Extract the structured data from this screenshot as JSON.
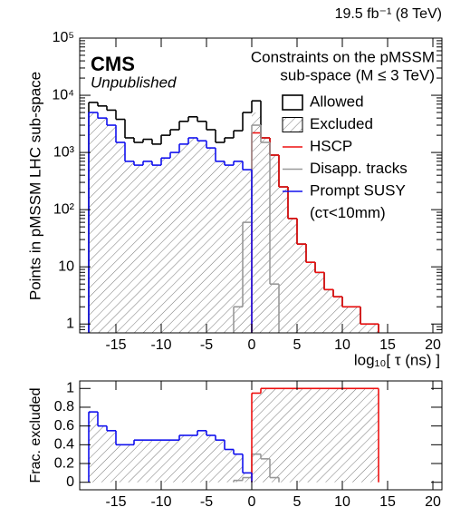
{
  "chart_data": [
    {
      "type": "histogram",
      "title": [
        "Constraints on the pMSSM",
        "sub-space (M ≤ 3 TeV)"
      ],
      "annotations": [
        "19.5 fb⁻¹ (8 TeV)",
        "CMS",
        "Unpublished"
      ],
      "xlabel": "log₁₀[ τ (ns) ]",
      "ylabel": "Points in pMSSM LHC sub-space",
      "log_y": true,
      "legend": "upper right",
      "legend_note": "(cτ<10mm)",
      "bins": [
        -18,
        -17,
        -16,
        -15,
        -14,
        -13,
        -12,
        -11,
        -10,
        -9,
        -8,
        -7,
        -6,
        -5,
        -4,
        -3,
        -2,
        -1,
        0,
        1,
        2,
        3,
        4,
        5,
        6,
        7,
        8,
        9,
        10,
        11,
        12,
        13,
        14
      ],
      "xlim": [
        -19,
        21
      ],
      "xticks": [
        -15,
        -10,
        -5,
        0,
        5,
        10,
        15,
        20
      ],
      "ylim": [
        0.7,
        100000
      ],
      "yticks": [
        1,
        10,
        {
          "value": 100,
          "label": "10²"
        },
        {
          "value": 1000,
          "label": "10³"
        },
        {
          "value": 10000,
          "label": "10⁴"
        },
        {
          "value": 100000,
          "label": "10⁵"
        }
      ],
      "series": [
        {
          "name": "Excluded",
          "color": "#808080",
          "fill": "hatch",
          "values": [
            5000,
            4000,
            3000,
            1500,
            700,
            600,
            700,
            600,
            800,
            1000,
            1400,
            1800,
            1600,
            1200,
            700,
            600,
            700,
            500,
            5000,
            1800,
            900,
            250,
            70,
            25,
            12,
            8,
            4,
            3,
            2,
            2,
            1,
            1
          ]
        },
        {
          "name": "Allowed",
          "color": "#000000",
          "values": [
            7500,
            6500,
            5500,
            3800,
            1800,
            1500,
            1700,
            1400,
            2000,
            2500,
            3500,
            4200,
            3500,
            2500,
            1500,
            1800,
            2400,
            5000,
            8000,
            1800,
            900,
            250,
            70,
            25,
            12,
            8,
            4,
            3,
            2,
            2,
            1,
            1
          ]
        },
        {
          "name": "HSCP",
          "color": "#ee1111",
          "values": [
            null,
            null,
            null,
            null,
            null,
            null,
            null,
            null,
            null,
            null,
            null,
            null,
            null,
            null,
            null,
            null,
            null,
            null,
            2200,
            1800,
            900,
            250,
            70,
            25,
            12,
            8,
            4,
            3,
            2,
            2,
            1,
            1
          ]
        },
        {
          "name": "Disapp. tracks",
          "color": "#999999",
          "values": [
            null,
            null,
            null,
            null,
            null,
            null,
            null,
            null,
            null,
            null,
            null,
            null,
            null,
            null,
            null,
            null,
            2,
            60,
            3000,
            1500,
            5,
            null,
            null,
            null,
            null,
            null,
            null,
            null,
            null,
            null,
            null,
            null
          ]
        },
        {
          "name": "Prompt SUSY",
          "color": "#1111ee",
          "values": [
            5000,
            4000,
            3000,
            1500,
            700,
            600,
            700,
            600,
            800,
            1000,
            1400,
            1800,
            1600,
            1200,
            700,
            600,
            700,
            500,
            null,
            null,
            null,
            null,
            null,
            null,
            null,
            null,
            null,
            null,
            null,
            null,
            null,
            null
          ]
        }
      ]
    },
    {
      "type": "histogram",
      "ylabel": "Frac. excluded",
      "bins": [
        -18,
        -17,
        -16,
        -15,
        -14,
        -13,
        -12,
        -11,
        -10,
        -9,
        -8,
        -7,
        -6,
        -5,
        -4,
        -3,
        -2,
        -1,
        0,
        1,
        2,
        3,
        4,
        5,
        6,
        7,
        8,
        9,
        10,
        11,
        12,
        13,
        14
      ],
      "xlim": [
        -19,
        21
      ],
      "xticks": [
        -15,
        -10,
        -5,
        0,
        5,
        10,
        15,
        20
      ],
      "ylim": [
        -0.08,
        1.08
      ],
      "yticks": [
        0,
        0.2,
        0.4,
        0.6,
        0.8,
        1
      ],
      "series": [
        {
          "color": "#808080",
          "fill": "hatch",
          "values": [
            0.75,
            0.6,
            0.55,
            0.4,
            0.4,
            0.45,
            0.45,
            0.45,
            0.45,
            0.45,
            0.5,
            0.5,
            0.55,
            0.5,
            0.45,
            0.35,
            0.3,
            0.1,
            0.95,
            1,
            1,
            1,
            1,
            1,
            1,
            1,
            1,
            1,
            1,
            1,
            1,
            1
          ]
        },
        {
          "color": "#999999",
          "values": [
            null,
            null,
            null,
            null,
            null,
            null,
            null,
            null,
            null,
            null,
            null,
            null,
            null,
            null,
            null,
            null,
            0.02,
            0.05,
            0.3,
            0.25,
            0.05,
            null,
            null,
            null,
            null,
            null,
            null,
            null,
            null,
            null,
            null,
            null
          ]
        },
        {
          "color": "#ee1111",
          "values": [
            null,
            null,
            null,
            null,
            null,
            null,
            null,
            null,
            null,
            null,
            null,
            null,
            null,
            null,
            null,
            null,
            null,
            null,
            0.95,
            1,
            1,
            1,
            1,
            1,
            1,
            1,
            1,
            1,
            1,
            1,
            1,
            1
          ]
        },
        {
          "color": "#1111ee",
          "values": [
            0.75,
            0.6,
            0.55,
            0.4,
            0.4,
            0.45,
            0.45,
            0.45,
            0.45,
            0.45,
            0.5,
            0.5,
            0.55,
            0.5,
            0.45,
            0.35,
            0.3,
            0.1,
            null,
            null,
            null,
            null,
            null,
            null,
            null,
            null,
            null,
            null,
            null,
            null,
            null,
            null
          ]
        }
      ]
    }
  ]
}
